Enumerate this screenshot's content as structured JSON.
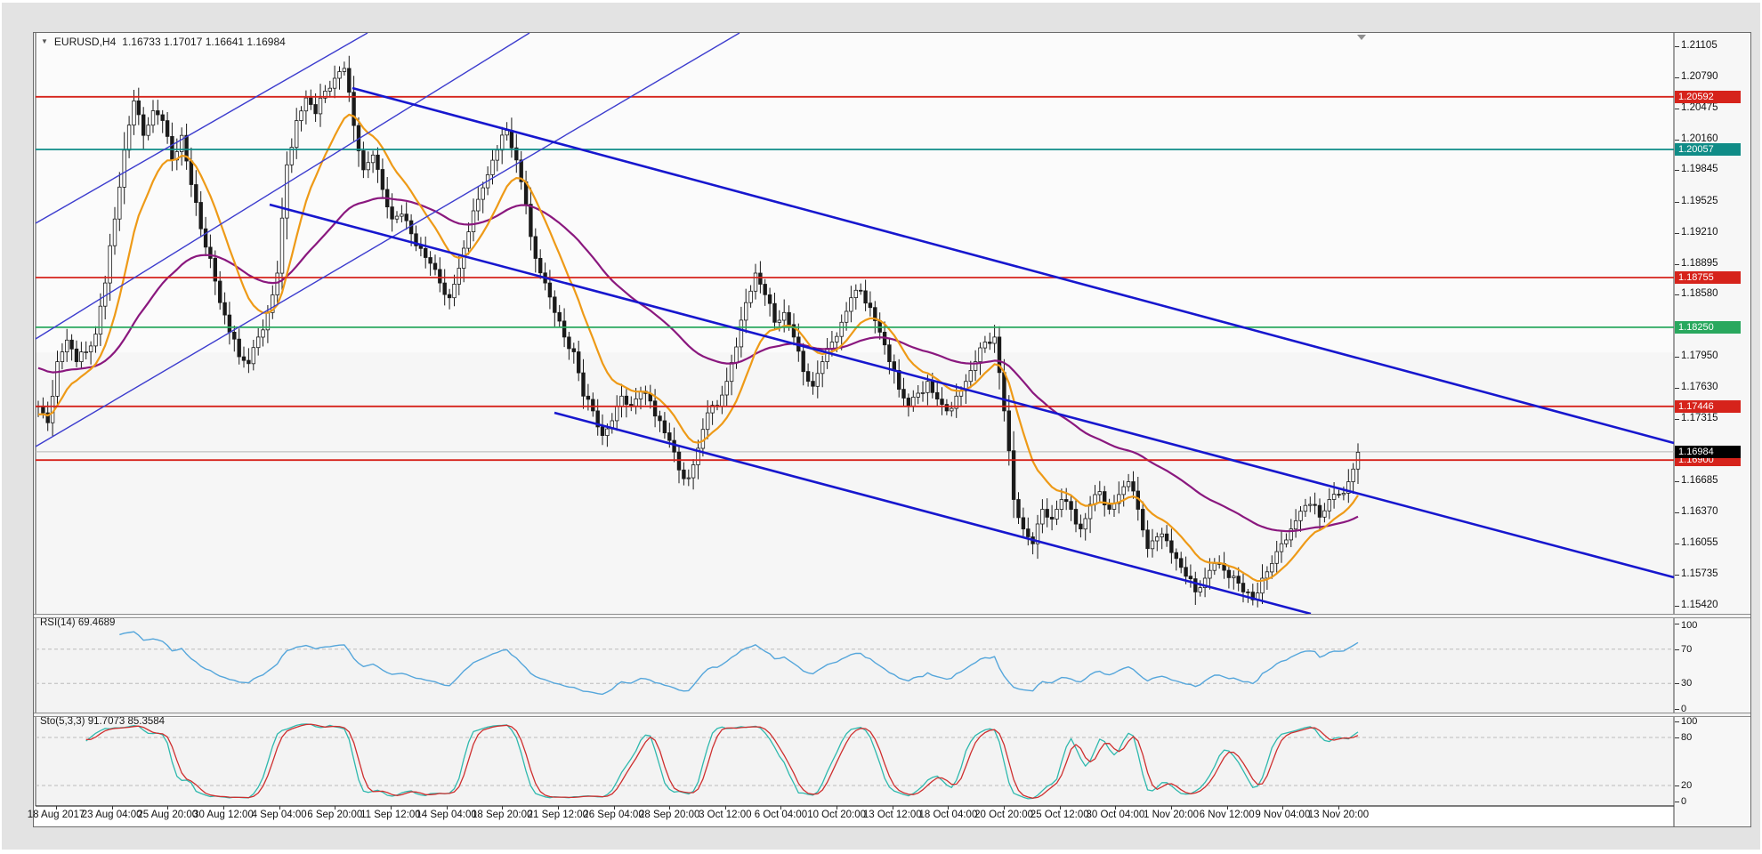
{
  "window": {
    "title_symbol": "EURUSD,H4",
    "title_ohlc": "1.16733 1.17017 1.16641 1.16984"
  },
  "chart_data": {
    "type": "candlestick",
    "symbol": "EURUSD",
    "timeframe": "H4",
    "title": "EURUSD,H4  1.16733 1.17017 1.16641 1.16984",
    "ohlc_display": {
      "open": "1.16733",
      "high": "1.17017",
      "low": "1.16641",
      "close": "1.16984"
    },
    "price_range": {
      "top": 1.21241,
      "bottom": 1.15338
    },
    "price_axis_labels": [
      "1.21105",
      "1.20790",
      "1.20475",
      "1.20160",
      "1.19845",
      "1.19525",
      "1.19210",
      "1.18895",
      "1.18580",
      "1.17950",
      "1.17630",
      "1.17315",
      "1.16685",
      "1.16370",
      "1.16055",
      "1.15735",
      "1.15420"
    ],
    "x_labels": [
      "18 Aug 2017",
      "23 Aug 04:00",
      "25 Aug 20:00",
      "30 Aug 12:00",
      "4 Sep 04:00",
      "6 Sep 20:00",
      "11 Sep 12:00",
      "14 Sep 04:00",
      "18 Sep 20:00",
      "21 Sep 12:00",
      "26 Sep 04:00",
      "28 Sep 20:00",
      "3 Oct 12:00",
      "6 Oct 04:00",
      "10 Oct 20:00",
      "13 Oct 12:00",
      "18 Oct 04:00",
      "20 Oct 20:00",
      "25 Oct 12:00",
      "30 Oct 04:00",
      "1 Nov 20:00",
      "6 Nov 12:00",
      "9 Nov 04:00",
      "13 Nov 20:00"
    ],
    "closes": [
      1.1745,
      1.1728,
      1.179,
      1.1812,
      1.179,
      1.18,
      1.1818,
      1.187,
      1.1935,
      1.2005,
      1.2055,
      1.202,
      1.2045,
      1.2035,
      1.1995,
      1.202,
      1.197,
      1.1925,
      1.1895,
      1.185,
      1.182,
      1.1795,
      1.1788,
      1.1815,
      1.184,
      1.188,
      1.199,
      1.2035,
      1.2058,
      1.2042,
      1.2065,
      1.2078,
      1.2088,
      1.203,
      1.1985,
      1.2,
      1.1965,
      1.1935,
      1.194,
      1.192,
      1.1905,
      1.189,
      1.187,
      1.1855,
      1.1885,
      1.1922,
      1.1955,
      1.198,
      1.2005,
      1.2025,
      1.1995,
      1.195,
      1.1895,
      1.187,
      1.184,
      1.1815,
      1.18,
      1.1755,
      1.174,
      1.1715,
      1.173,
      1.1755,
      1.1745,
      1.176,
      1.175,
      1.173,
      1.171,
      1.168,
      1.1672,
      1.1702,
      1.1738,
      1.1745,
      1.177,
      1.1805,
      1.185,
      1.188,
      1.1858,
      1.183,
      1.184,
      1.1815,
      1.178,
      1.1765,
      1.179,
      1.181,
      1.183,
      1.1855,
      1.1862,
      1.1845,
      1.182,
      1.179,
      1.1762,
      1.1745,
      1.1758,
      1.177,
      1.1752,
      1.174,
      1.1755,
      1.177,
      1.179,
      1.181,
      1.1815,
      1.174,
      1.165,
      1.162,
      1.1605,
      1.164,
      1.163,
      1.165,
      1.164,
      1.162,
      1.1645,
      1.1658,
      1.164,
      1.1655,
      1.1668,
      1.164,
      1.16,
      1.1612,
      1.1608,
      1.159,
      1.1572,
      1.1556,
      1.157,
      1.1585,
      1.1578,
      1.1572,
      1.1556,
      1.1548,
      1.157,
      1.1585,
      1.1605,
      1.162,
      1.1638,
      1.1645,
      1.1632,
      1.165,
      1.1655,
      1.1668,
      1.1698
    ],
    "levels": [
      {
        "price": 1.20592,
        "label": "1.20592",
        "color": "#D6231B",
        "kind": "resistance"
      },
      {
        "price": 1.20057,
        "label": "1.20057",
        "color": "#0F8C87",
        "kind": "resistance"
      },
      {
        "price": 1.18755,
        "label": "1.18755",
        "color": "#D6231B",
        "kind": "resistance"
      },
      {
        "price": 1.1825,
        "label": "1.18250",
        "color": "#29A85E",
        "kind": "support"
      },
      {
        "price": 1.17446,
        "label": "1.17446",
        "color": "#D6231B",
        "kind": "resistance"
      },
      {
        "price": 1.169,
        "label": "1.16900",
        "color": "#D6231B",
        "kind": "support"
      }
    ],
    "current_price": {
      "value": 1.16984,
      "label": "1.16984",
      "line_color": "#b5b5b5",
      "badge_color": "#000000"
    },
    "trendlines": {
      "ascending": {
        "color": "#3C3CCE",
        "width": 1.4,
        "segments": [
          [
            37,
            247,
            410,
            33
          ],
          [
            37,
            377,
            592,
            33
          ],
          [
            37,
            498,
            828,
            33
          ]
        ]
      },
      "descending": {
        "color": "#1717CE",
        "width": 2.6,
        "segments": [
          [
            300,
            226,
            1878,
            645
          ],
          [
            393,
            95,
            1878,
            494
          ],
          [
            620,
            460,
            1470,
            686
          ]
        ]
      }
    },
    "moving_averages": [
      {
        "name": "fast-ma",
        "color": "#EE9A17",
        "period": 13
      },
      {
        "name": "slow-ma",
        "color": "#8A187E",
        "period": 55
      }
    ],
    "indicators": [
      {
        "name": "RSI",
        "label": "RSI(14) 69.4689",
        "period": 14,
        "value": 69.4689,
        "color": "#55A6DB",
        "grid_levels": [
          70,
          30
        ],
        "axis_labels": [
          "100",
          "70",
          "30",
          "0"
        ]
      },
      {
        "name": "Stochastic",
        "label": "Sto(5,3,3) 91.7073 85.3584",
        "k_value": 91.7073,
        "d_value": 85.3584,
        "k_color": "#2FB9AE",
        "d_color": "#CE2F2F",
        "grid_levels": [
          80,
          20
        ],
        "axis_labels": [
          "100",
          "80",
          "20",
          "0"
        ]
      }
    ]
  }
}
